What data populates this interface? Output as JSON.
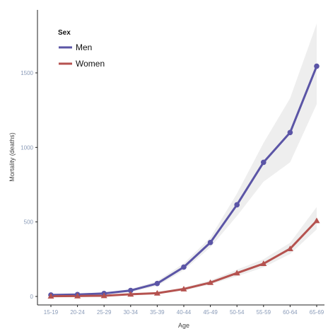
{
  "chart_data": {
    "type": "line",
    "categories": [
      "15-19",
      "20-24",
      "25-29",
      "30-34",
      "35-39",
      "40-44",
      "45-49",
      "50-54",
      "55-59",
      "60-64",
      "65-69"
    ],
    "series": [
      {
        "name": "Men",
        "color": "#5b55a6",
        "marker": "circle",
        "values": [
          10,
          13,
          20,
          40,
          87,
          197,
          362,
          615,
          900,
          1100,
          1545
        ],
        "band_lower": [
          5,
          8,
          14,
          30,
          70,
          175,
          330,
          540,
          770,
          900,
          1290
        ],
        "band_upper": [
          15,
          18,
          26,
          50,
          104,
          222,
          395,
          690,
          1030,
          1330,
          1830
        ]
      },
      {
        "name": "Women",
        "color": "#b5524f",
        "marker": "triangle",
        "values": [
          2,
          3,
          5,
          15,
          22,
          50,
          93,
          157,
          220,
          320,
          508
        ],
        "band_lower": [
          0,
          1,
          2,
          10,
          15,
          40,
          80,
          135,
          195,
          285,
          450
        ],
        "band_upper": [
          5,
          6,
          9,
          20,
          30,
          60,
          108,
          180,
          250,
          360,
          600
        ]
      }
    ],
    "title": "",
    "xlabel": "Age",
    "ylabel": "Mortality (deaths)",
    "yticks": [
      0,
      500,
      1000,
      1500
    ],
    "ylim": [
      -40,
      1850
    ],
    "grid": false,
    "legend": {
      "title": "Sex",
      "placement": "top-left"
    },
    "band_color": "#ebebeb"
  }
}
